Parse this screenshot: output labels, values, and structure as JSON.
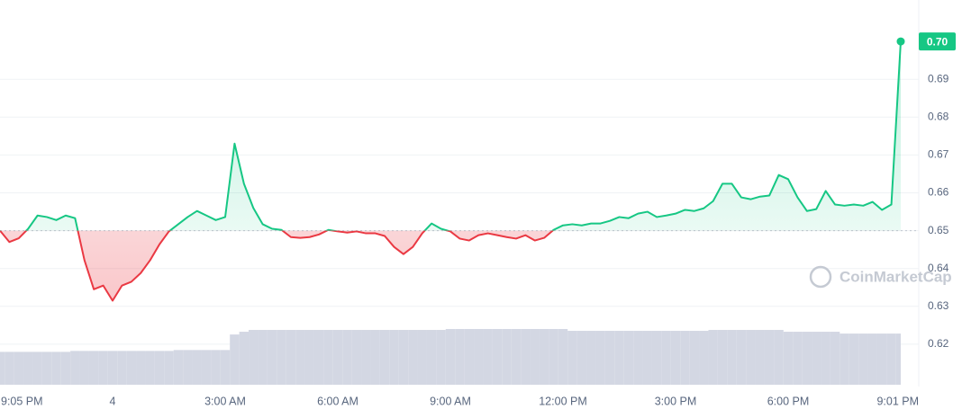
{
  "chart_data": {
    "type": "line",
    "x": [
      21,
      21.25,
      21.5,
      21.75,
      22,
      22.25,
      22.5,
      22.75,
      23,
      23.25,
      23.5,
      23.75,
      24,
      24.25,
      24.5,
      24.75,
      25,
      25.25,
      25.5,
      25.75,
      26,
      26.25,
      26.5,
      26.75,
      27,
      27.25,
      27.5,
      27.75,
      28,
      28.25,
      28.5,
      28.75,
      29,
      29.25,
      29.5,
      29.75,
      30,
      30.25,
      30.5,
      30.75,
      31,
      31.25,
      31.5,
      31.75,
      32,
      32.25,
      32.5,
      32.75,
      33,
      33.25,
      33.5,
      33.75,
      34,
      34.25,
      34.5,
      34.75,
      35,
      35.25,
      35.5,
      35.75,
      36,
      36.25,
      36.5,
      36.75,
      37,
      37.25,
      37.5,
      37.75,
      38,
      38.25,
      38.5,
      38.75,
      39,
      39.25,
      39.5,
      39.75,
      40,
      40.25,
      40.5,
      40.75,
      41,
      41.25,
      41.5,
      41.75,
      42,
      42.25,
      42.5,
      42.75,
      43,
      43.25,
      43.5,
      43.75,
      44,
      44.25,
      44.5,
      44.75,
      45
    ],
    "values": [
      0.65,
      0.647,
      0.648,
      0.6505,
      0.654,
      0.6536,
      0.6528,
      0.654,
      0.6533,
      0.6422,
      0.6345,
      0.6355,
      0.6315,
      0.6355,
      0.6365,
      0.6388,
      0.6422,
      0.6464,
      0.6498,
      0.6517,
      0.6536,
      0.6552,
      0.654,
      0.6528,
      0.6536,
      0.673,
      0.6624,
      0.656,
      0.6517,
      0.6505,
      0.6502,
      0.6483,
      0.6481,
      0.6483,
      0.649,
      0.6502,
      0.6498,
      0.6495,
      0.6498,
      0.6493,
      0.6493,
      0.6486,
      0.6457,
      0.6438,
      0.6457,
      0.6493,
      0.6519,
      0.6505,
      0.6498,
      0.6479,
      0.6474,
      0.6488,
      0.6493,
      0.6488,
      0.6483,
      0.6479,
      0.6488,
      0.6474,
      0.6481,
      0.6502,
      0.6514,
      0.6517,
      0.6514,
      0.6519,
      0.6519,
      0.6526,
      0.6536,
      0.6533,
      0.6545,
      0.655,
      0.6536,
      0.654,
      0.6545,
      0.6555,
      0.6552,
      0.6559,
      0.6578,
      0.6624,
      0.6624,
      0.6588,
      0.6583,
      0.659,
      0.6593,
      0.6647,
      0.6636,
      0.6588,
      0.6552,
      0.6557,
      0.6605,
      0.6569,
      0.6566,
      0.6569,
      0.6566,
      0.6576,
      0.6555,
      0.6569,
      0.7
    ],
    "volume": [
      36,
      36,
      36,
      36,
      36,
      36,
      36,
      36,
      37,
      37,
      37,
      37,
      37,
      37,
      37,
      37,
      37,
      37,
      37,
      38,
      38,
      38,
      38,
      38,
      38,
      55,
      58,
      60,
      60,
      60,
      60,
      60,
      60,
      60,
      60,
      60,
      60,
      60,
      60,
      60,
      60,
      60,
      60,
      60,
      60,
      60,
      60,
      60,
      61,
      61,
      61,
      61,
      61,
      61,
      61,
      61,
      61,
      61,
      61,
      61,
      61,
      59,
      59,
      59,
      59,
      59,
      59,
      59,
      59,
      59,
      59,
      59,
      59,
      59,
      59,
      59,
      60,
      60,
      60,
      60,
      60,
      60,
      60,
      60,
      58,
      58,
      58,
      58,
      58,
      58,
      56,
      56,
      56,
      56,
      56,
      56,
      56
    ],
    "baseline": 0.65,
    "up_color": "#16c784",
    "down_color": "#ea3943",
    "volume_color": "#d3d7e3",
    "last_price": {
      "value": 0.7,
      "label": "0.70"
    },
    "watermark": "CoinMarketCap",
    "xlim": [
      21,
      45
    ],
    "xticks": [
      {
        "value": 21.0833,
        "label": "9:05 PM"
      },
      {
        "value": 24,
        "label": "4"
      },
      {
        "value": 27,
        "label": "3:00 AM"
      },
      {
        "value": 30,
        "label": "6:00 AM"
      },
      {
        "value": 33,
        "label": "9:00 AM"
      },
      {
        "value": 36,
        "label": "12:00 PM"
      },
      {
        "value": 39,
        "label": "3:00 PM"
      },
      {
        "value": 42,
        "label": "6:00 PM"
      },
      {
        "value": 45.0167,
        "label": "9:01 PM"
      }
    ],
    "ylim": [
      0.61,
      0.71
    ],
    "yticks": [
      0.62,
      0.63,
      0.64,
      0.65,
      0.66,
      0.67,
      0.68,
      0.69
    ],
    "grid": true
  }
}
